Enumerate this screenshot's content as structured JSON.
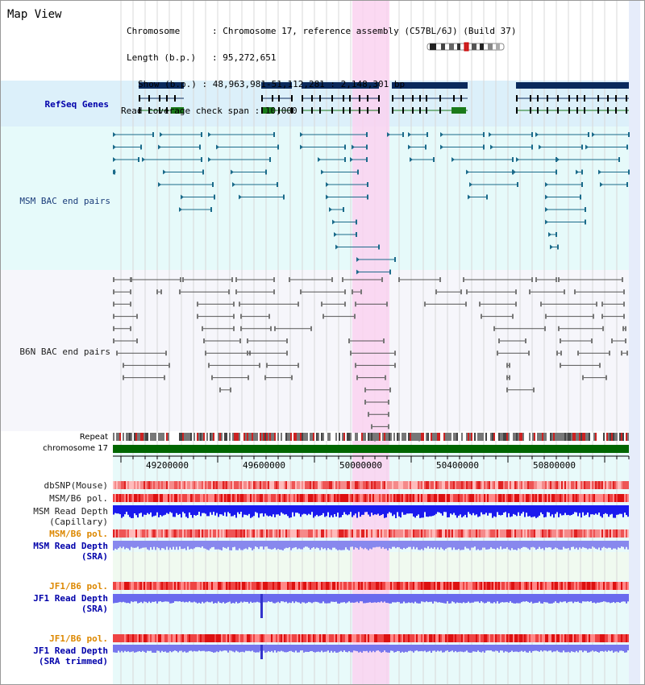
{
  "title": "Map View",
  "info": {
    "chromosome_key": "Chromosome",
    "chromosome_value": "Chromosome 17, reference assembly (C57BL/6J) (Build 37)",
    "length_key": "Length (b.p.)",
    "length_value": "95,272,651",
    "show_key": "Show (b.p.)",
    "show_value": "48,963,981-51,112,281 : 2,148,301 bp",
    "span_key": "Read coverage check span",
    "span_value": "10,000"
  },
  "tracks": {
    "refseq": "RefSeq Genes",
    "msm_bac": "MSM BAC end pairs",
    "b6n_bac": "B6N BAC end pairs",
    "repeat": "Repeat",
    "chromosome": "chromosome 17",
    "dbsnp": "dbSNP(Mouse)",
    "msm_b6_pol": "MSM/B6 pol.",
    "msm_depth_1": "MSM Read Depth",
    "msm_depth_2": "(Capillary)",
    "msm_b6_pol_sra": "MSM/B6 pol.",
    "msm_sra_1": "MSM Read Depth",
    "msm_sra_2": "(SRA)",
    "jf1_b6_pol": "JF1/B6 pol.",
    "jf1_depth_1": "JF1 Read Depth",
    "jf1_depth_2": "(SRA)",
    "jf1_b6_pol_trim": "JF1/B6 pol.",
    "jf1_trim_1": "JF1 Read Depth",
    "jf1_trim_2": "(SRA trimmed)"
  },
  "axis": {
    "ticks": [
      "49200000",
      "49600000",
      "50000000",
      "50400000",
      "50800000"
    ]
  },
  "colors": {
    "refseq_bg": "#dcf0fa",
    "msm_bac_bg": "#e6fafa",
    "b6n_bac_bg": "#f6f6fb",
    "highlight": "#fad2f0",
    "gene_dark": "#0a2a5c",
    "gene_green": "#1a7a1a",
    "msm_bac": "#1a6a8a",
    "b6n_bac": "#555555",
    "chromosome": "#006600",
    "depth_blue": "#1a1aee",
    "depth_light": "#8888ff"
  }
}
